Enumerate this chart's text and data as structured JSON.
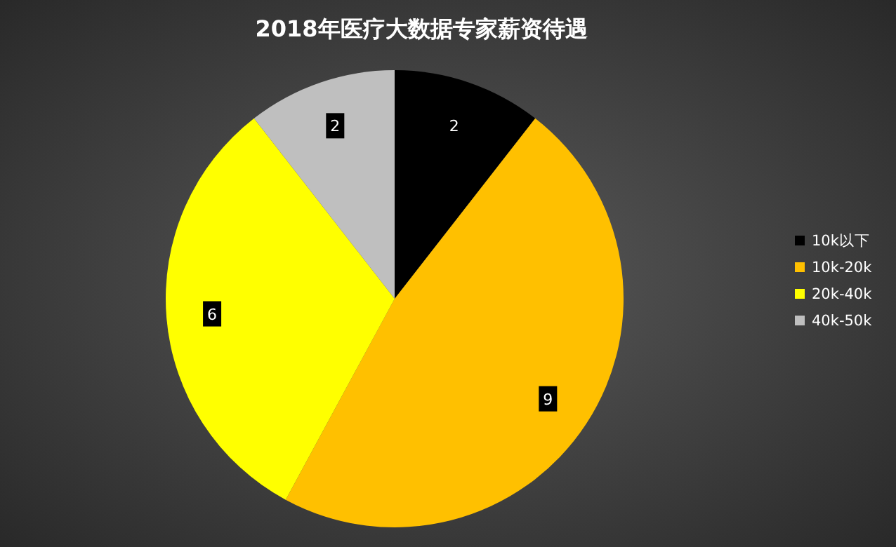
{
  "chart_data": {
    "type": "pie",
    "title": "2018年医疗大数据专家薪资待遇",
    "categories": [
      "10k以下",
      "10k-20k",
      "20k-40k",
      "40k-50k"
    ],
    "values": [
      2,
      9,
      6,
      2
    ],
    "colors": [
      "#000000",
      "#ffc000",
      "#ffff00",
      "#bfbfbf"
    ],
    "data_labels": true,
    "legend": "right"
  }
}
